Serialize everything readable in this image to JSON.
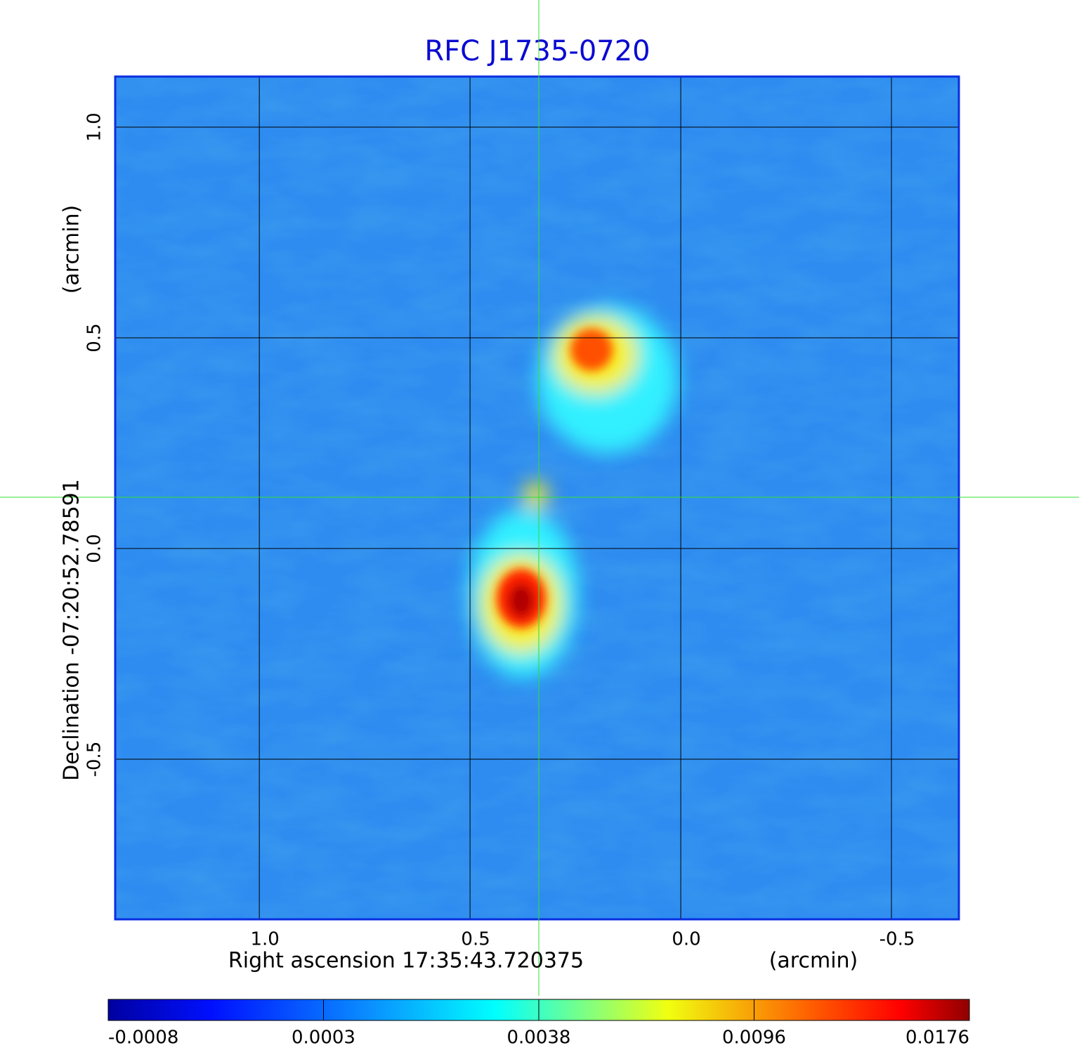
{
  "chart_data": {
    "type": "image",
    "title": "RFC J1735-0720",
    "x_label": "Right ascension  17:35:43.720375",
    "x_unit": "(arcmin)",
    "y_label": "Declination  -07:20:52.78591",
    "y_unit": "(arcmin)",
    "xlim": [
      1.342,
      -0.66
    ],
    "ylim": [
      -0.88,
      1.12
    ],
    "xticks": [
      {
        "value": 1,
        "label": "1.0"
      },
      0.5,
      {
        "value": 0,
        "label": "0.0"
      },
      -0.5
    ],
    "yticks": [
      {
        "value": 1,
        "label": "1.0"
      },
      0.5,
      {
        "value": 0,
        "label": "0.0"
      },
      -0.5
    ],
    "grid": true,
    "colorbar_ticks": [
      -0.0008,
      0.0003,
      0.0038,
      0.0096,
      0.0176
    ]
  }
}
